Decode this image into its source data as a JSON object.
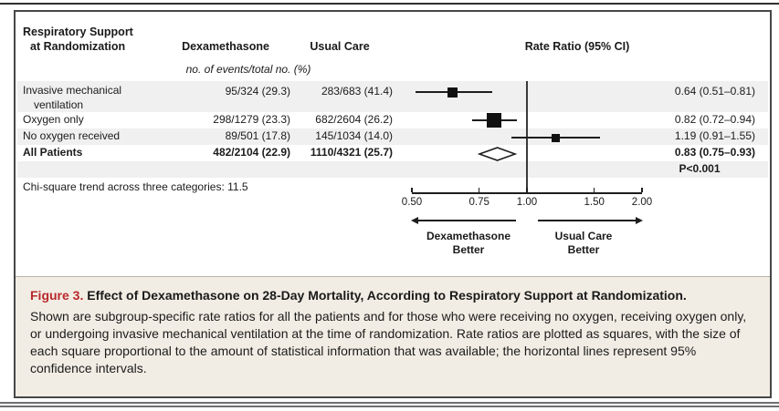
{
  "table": {
    "header_col1_line1": "Respiratory Support",
    "header_col1_line2": "at Randomization",
    "header_dex": "Dexamethasone",
    "header_usual": "Usual Care",
    "header_rr": "Rate Ratio (95% CI)",
    "subheader": "no. of events/total no. (%)",
    "rows": [
      {
        "label_line1": "Invasive mechanical",
        "label_line2": "ventilation",
        "dex": "95/324 (29.3)",
        "usual": "283/683 (41.4)",
        "rr_text": "0.64 (0.51–0.81)"
      },
      {
        "label_line1": "Oxygen only",
        "label_line2": "",
        "dex": "298/1279 (23.3)",
        "usual": "682/2604 (26.2)",
        "rr_text": "0.82 (0.72–0.94)"
      },
      {
        "label_line1": "No oxygen received",
        "label_line2": "",
        "dex": "89/501 (17.8)",
        "usual": "145/1034 (14.0)",
        "rr_text": "1.19 (0.91–1.55)"
      },
      {
        "label_line1": "All Patients",
        "label_line2": "",
        "dex": "482/2104 (22.9)",
        "usual": "1110/4321 (25.7)",
        "rr_text": "0.83 (0.75–0.93)"
      }
    ],
    "p_value": "P<0.001",
    "footnote": "Chi-square trend across three categories: 11.5"
  },
  "chart_data": {
    "type": "forest",
    "title": "Rate Ratio (95% CI)",
    "x_scale": "log",
    "xlim": [
      0.5,
      2.0
    ],
    "tick_values": [
      0.5,
      0.75,
      1.0,
      1.5,
      2.0
    ],
    "tick_labels": [
      "0.50",
      "0.75",
      "1.00",
      "1.50",
      "2.00"
    ],
    "reference_line": 1.0,
    "series": [
      {
        "name": "Invasive mechanical ventilation",
        "rr": 0.64,
        "ci_low": 0.51,
        "ci_high": 0.81,
        "marker": "square"
      },
      {
        "name": "Oxygen only",
        "rr": 0.82,
        "ci_low": 0.72,
        "ci_high": 0.94,
        "marker": "square"
      },
      {
        "name": "No oxygen received",
        "rr": 1.19,
        "ci_low": 0.91,
        "ci_high": 1.55,
        "marker": "square"
      },
      {
        "name": "All Patients",
        "rr": 0.83,
        "ci_low": 0.75,
        "ci_high": 0.93,
        "marker": "diamond"
      }
    ],
    "left_label_line1": "Dexamethasone",
    "left_label_line2": "Better",
    "right_label_line1": "Usual Care",
    "right_label_line2": "Better",
    "colors": {
      "marker": "#111111",
      "line": "#1d1d1d",
      "stripe": "#f0f0f0"
    }
  },
  "caption": {
    "label": "Figure 3.",
    "title": " Effect of Dexamethasone on 28-Day Mortality, According to Respiratory Support at Randomization.",
    "body": "Shown are subgroup-specific rate ratios for all the patients and for those who were receiving no oxygen, receiving oxygen only, or undergoing invasive mechanical ventilation at the time of randomization. Rate ratios are plotted as squares, with the size of each square proportional to the amount of statistical information that was available; the horizontal lines represent 95% confidence intervals."
  }
}
